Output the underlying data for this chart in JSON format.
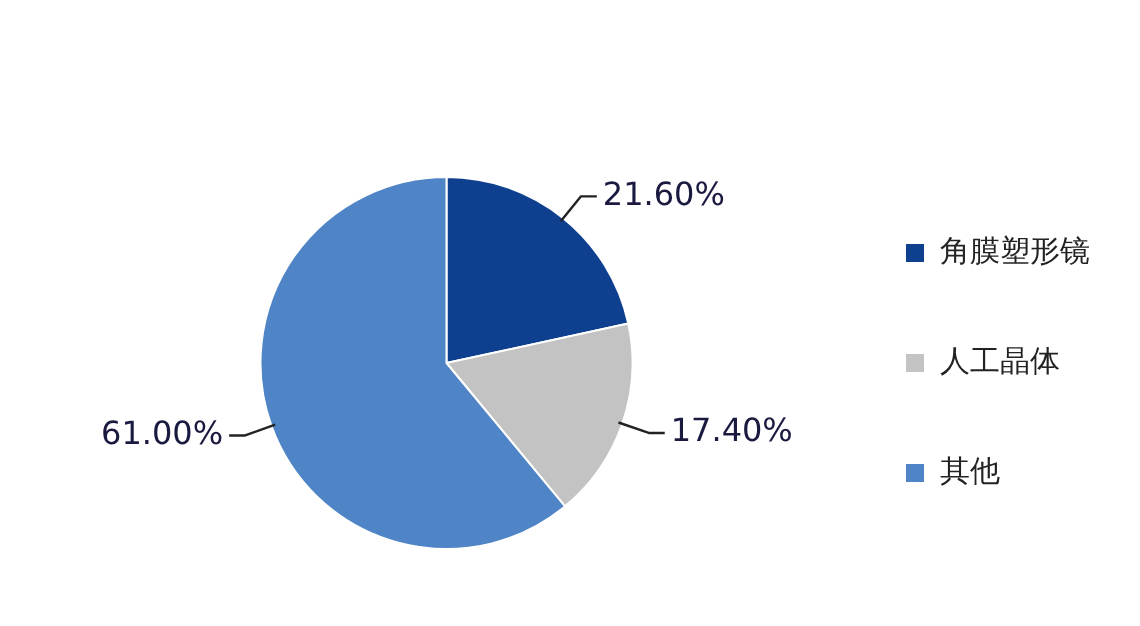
{
  "chart_data": {
    "type": "pie",
    "categories": [
      "角膜塑形镜",
      "人工晶体",
      "其他"
    ],
    "values": [
      21.6,
      17.4,
      61.0
    ],
    "value_labels": [
      "21.60%",
      "17.40%",
      "61.00%"
    ],
    "colors": [
      "#0f3f8f",
      "#c3c3c3",
      "#4f85c6"
    ],
    "legend": "right"
  }
}
